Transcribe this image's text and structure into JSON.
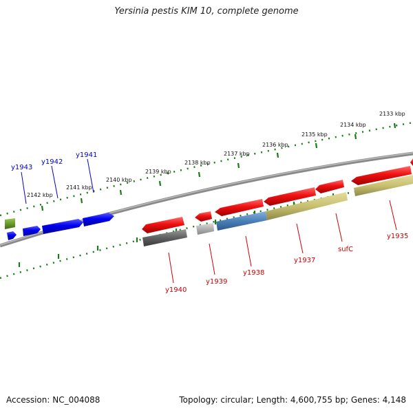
{
  "title": "Yersinia pestis KIM 10, complete genome",
  "footer": {
    "accession": "Accession: NC_004088",
    "stats": "Topology: circular; Length: 4,600,755 bp; Genes: 4,148"
  },
  "scale_labels": [
    "2133 kbp",
    "2134 kbp",
    "2135 kbp",
    "2136 kbp",
    "2137 kbp",
    "2138 kbp",
    "2139 kbp",
    "2140 kbp",
    "2141 kbp",
    "2142 kbp"
  ],
  "genes_forward": [
    "y1943",
    "y1942",
    "y1941"
  ],
  "genes_reverse": [
    "y1940",
    "y1939",
    "y1938",
    "y1937",
    "sufC",
    "y1935"
  ],
  "colors": {
    "forward_cds": "#0000ee",
    "reverse_cds": "#ee0000",
    "backbone": "#808080",
    "tick": "#1a7a1a",
    "gene_olive": "#c8c070",
    "gene_steel": "#4a80b8",
    "gene_dark_gray": "#606060",
    "gene_light_gray": "#b0b0b0",
    "gene_green": "#6a9a2a"
  }
}
